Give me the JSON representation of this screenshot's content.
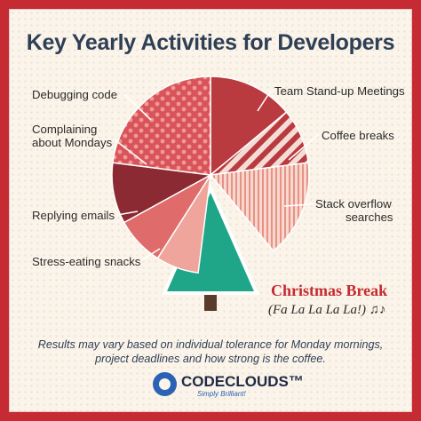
{
  "chart_data": {
    "type": "pie",
    "title": "Key Yearly Activities for Developers",
    "slices": [
      {
        "label": "Team Stand-up Meetings",
        "value": 14,
        "color": "#b93a3f",
        "pattern": "solid"
      },
      {
        "label": "Coffee breaks",
        "value": 9,
        "color": "#b93a3f",
        "pattern": "stripes"
      },
      {
        "label": "Stack overflow searches",
        "value": 16,
        "color": "#efb1a6",
        "pattern": "vertical-stripes"
      },
      {
        "label": "Christmas Break",
        "value": 13,
        "color": "#1fa688",
        "pattern": "tree"
      },
      {
        "label": "Stress-eating snacks",
        "value": 7,
        "color": "#efa59b",
        "pattern": "solid"
      },
      {
        "label": "Replying emails",
        "value": 8,
        "color": "#e06b6b",
        "pattern": "solid"
      },
      {
        "label": "Complaining about Mondays",
        "value": 10,
        "color": "#8b2a33",
        "pattern": "solid"
      },
      {
        "label": "Debugging code",
        "value": 23,
        "color": "#d9535a",
        "pattern": "dots"
      }
    ],
    "annotation": "(Fa La La La La!) ♫♪"
  },
  "labels": {
    "team_standup": "Team Stand-up Meetings",
    "coffee": "Coffee breaks",
    "stack_line1": "Stack overflow",
    "stack_line2": "searches",
    "debugging": "Debugging code",
    "complaining_line1": "Complaining",
    "complaining_line2": "about Mondays",
    "replying": "Replying emails",
    "stress": "Stress-eating snacks",
    "christmas": "Christmas Break",
    "fala": "(Fa La La La La!) ♫♪"
  },
  "footnote": {
    "line1": "Results may vary based on individual tolerance for Monday mornings,",
    "line2": "project deadlines and how strong is the coffee."
  },
  "brand": {
    "name": "CODECLOUDS™",
    "tagline": "Simply Brilliant!"
  },
  "colors": {
    "frame": "#c62a32",
    "title": "#2e3f56",
    "tree": "#1fa688",
    "trunk": "#5a3a2a"
  }
}
